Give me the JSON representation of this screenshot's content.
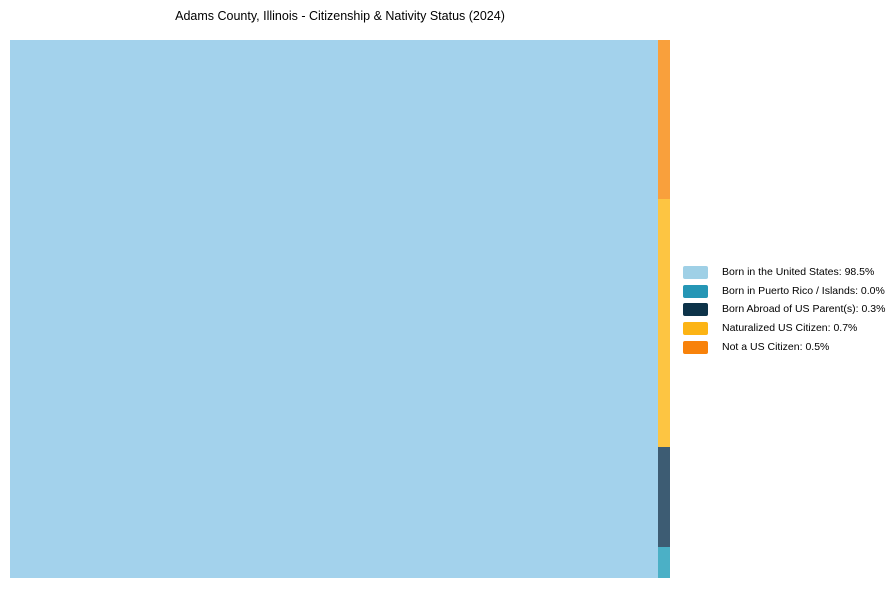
{
  "title": "Adams County, Illinois - Citizenship & Nativity Status (2024)",
  "chart_data": {
    "type": "mosaic-treemap",
    "title": "Adams County, Illinois - Citizenship & Nativity Status (2024)",
    "unit": "%",
    "categories": [
      "Born in the United States",
      "Born in Puerto Rico / Islands",
      "Born Abroad of US Parent(s)",
      "Naturalized US Citizen",
      "Not a US Citizen"
    ],
    "values": [
      98.5,
      0.0,
      0.3,
      0.7,
      0.5
    ],
    "axes": "none",
    "grid": false,
    "legend_position": "right",
    "legend_entries": [
      {
        "label": "Born in the United States: 98.5%",
        "color": "#9fd0e6"
      },
      {
        "label": "Born in Puerto Rico / Islands: 0.0%",
        "color": "#2596b5"
      },
      {
        "label": "Born Abroad of US Parent(s): 0.3%",
        "color": "#0d3349"
      },
      {
        "label": "Naturalized US Citizen: 0.7%",
        "color": "#fcb415"
      },
      {
        "label": "Not a US Citizen: 0.5%",
        "color": "#f8820a"
      }
    ],
    "main_block": {
      "label": "Born in the United States",
      "value_pct": 98.5,
      "fill": "#a3d2ec"
    },
    "strip_segments": [
      {
        "label": "Not a US Citizen",
        "value_pct": 0.5,
        "fill": "#f9a03c",
        "height_pct": 29.6
      },
      {
        "label": "Naturalized US Citizen",
        "value_pct": 0.7,
        "fill": "#fdc542",
        "height_pct": 46.1
      },
      {
        "label": "Born Abroad of US Parent(s)",
        "value_pct": 0.3,
        "fill": "#3d5c73",
        "height_pct": 18.6
      },
      {
        "label": "Born in Puerto Rico / Islands",
        "value_pct": 0.0,
        "fill": "#4bb0c6",
        "height_pct": 5.7
      }
    ]
  }
}
